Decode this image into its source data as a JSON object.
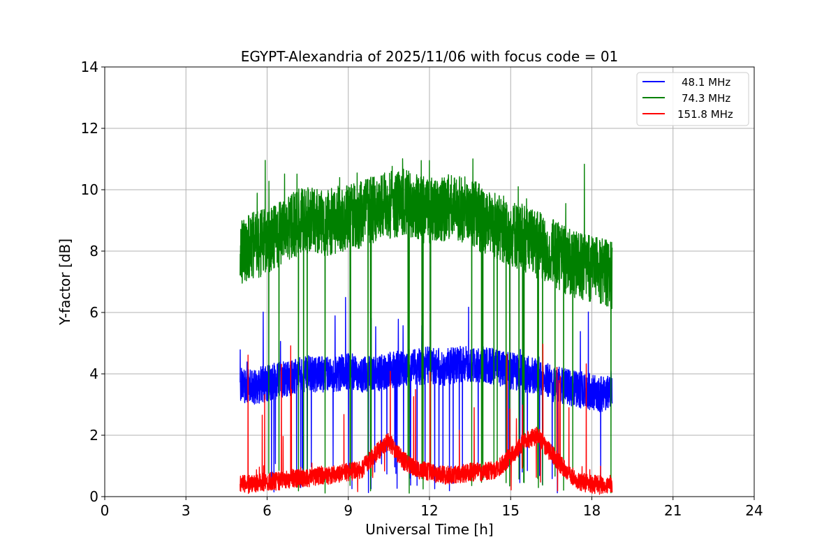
{
  "chart_data": {
    "type": "line",
    "title": "EGYPT-Alexandria of 2025/11/06 with focus code = 01",
    "xlabel": "Universal Time [h]",
    "ylabel": "Y-factor [dB]",
    "xlim": [
      0,
      24
    ],
    "ylim": [
      0,
      14
    ],
    "xticks": [
      0,
      3,
      6,
      9,
      12,
      15,
      18,
      21,
      24
    ],
    "yticks": [
      0,
      2,
      4,
      6,
      8,
      10,
      12,
      14
    ],
    "grid": true,
    "legend_position": "top-right",
    "x": [
      5.0,
      5.5,
      6.0,
      6.5,
      7.0,
      7.5,
      8.0,
      8.5,
      9.0,
      9.5,
      10.0,
      10.5,
      11.0,
      11.5,
      12.0,
      12.5,
      13.0,
      13.5,
      14.0,
      14.5,
      15.0,
      15.5,
      16.0,
      16.5,
      17.0,
      17.5,
      18.0,
      18.5,
      18.75
    ],
    "series": [
      {
        "name": "48.1 MHz",
        "color": "#0000ff",
        "values": [
          3.6,
          3.6,
          3.7,
          3.8,
          3.9,
          4.0,
          4.0,
          4.0,
          4.1,
          4.0,
          4.0,
          4.1,
          4.2,
          4.2,
          4.3,
          4.2,
          4.3,
          4.3,
          4.3,
          4.2,
          4.1,
          4.0,
          3.9,
          3.7,
          3.6,
          3.5,
          3.4,
          3.3,
          3.6
        ],
        "noise_amplitude": 0.6,
        "dip_floor": 0.1,
        "spike_max": 6.9
      },
      {
        "name": "74.3 MHz",
        "color": "#008000",
        "values": [
          7.9,
          8.2,
          8.3,
          8.6,
          8.9,
          9.0,
          8.9,
          9.0,
          9.1,
          9.2,
          9.4,
          9.5,
          9.6,
          9.4,
          9.3,
          9.4,
          9.4,
          9.3,
          9.0,
          8.8,
          8.6,
          8.4,
          8.2,
          8.0,
          7.7,
          7.5,
          7.4,
          7.3,
          7.2
        ],
        "noise_amplitude": 1.1,
        "dip_floor": 0.1,
        "spike_max": 11.1
      },
      {
        "name": "151.8 MHz",
        "color": "#ff0000",
        "values": [
          0.4,
          0.4,
          0.5,
          0.5,
          0.6,
          0.6,
          0.7,
          0.7,
          0.8,
          0.9,
          1.4,
          1.8,
          1.2,
          0.9,
          0.8,
          0.7,
          0.7,
          0.8,
          0.8,
          0.9,
          1.3,
          1.8,
          2.0,
          1.4,
          0.9,
          0.5,
          0.4,
          0.4,
          0.4
        ],
        "noise_amplitude": 0.3,
        "dip_floor": 0.05,
        "spike_max": 5.3
      }
    ]
  }
}
